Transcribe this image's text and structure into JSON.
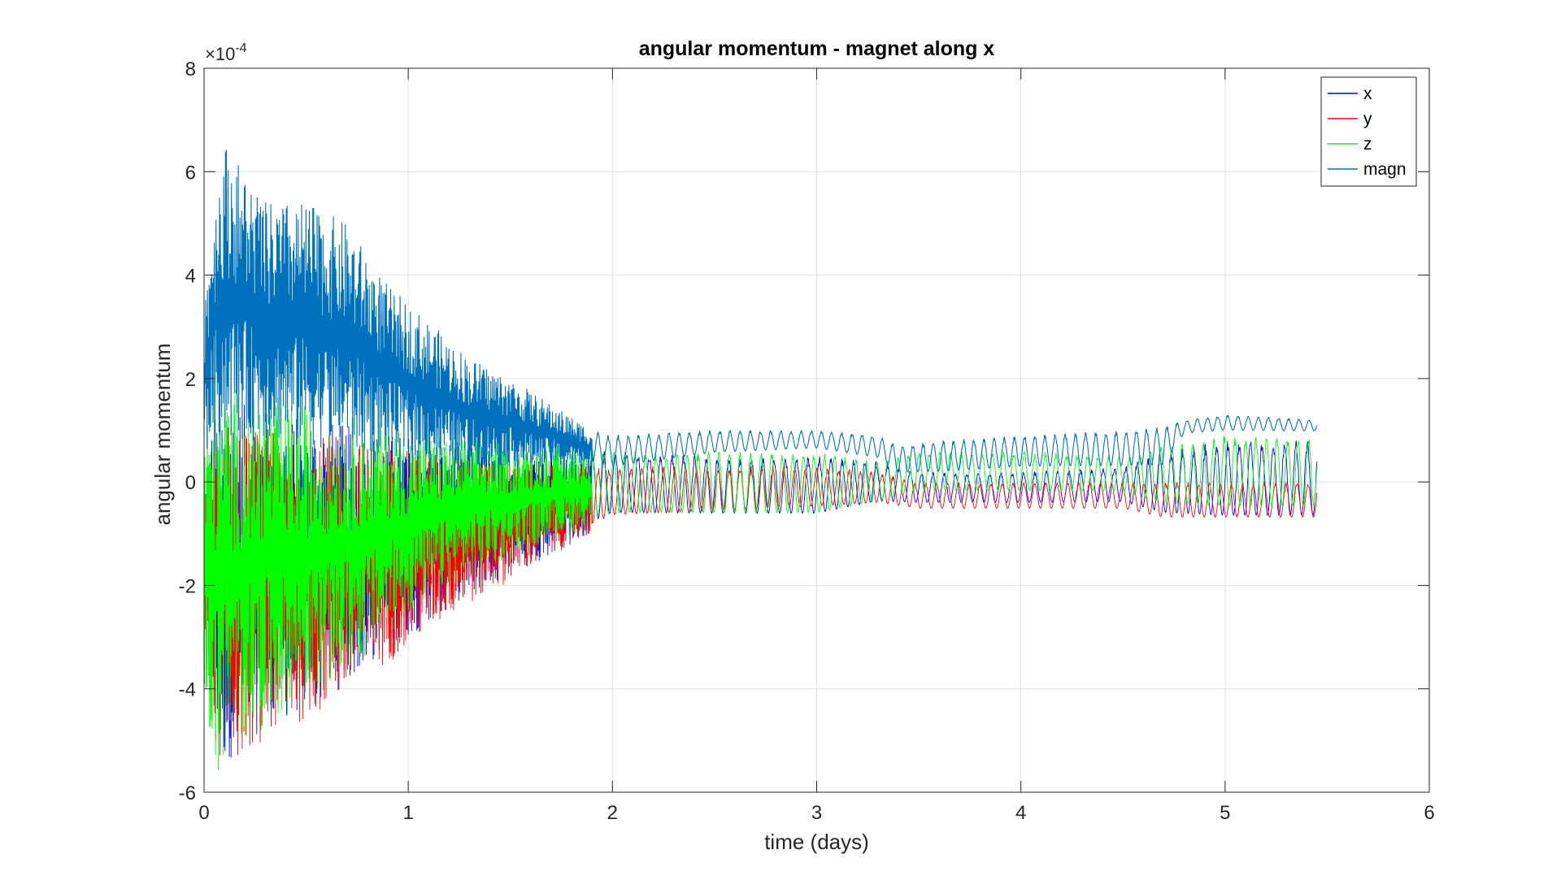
{
  "chart_data": {
    "type": "line",
    "title": "angular momentum - magnet along x",
    "xlabel": "time (days)",
    "ylabel": "angular momentum",
    "y_exponent_label": "×10",
    "y_exponent_power": "-4",
    "xlim": [
      0,
      6
    ],
    "ylim": [
      -6,
      8
    ],
    "x_ticks": [
      0,
      1,
      2,
      3,
      4,
      5,
      6
    ],
    "x_tick_labels": [
      "0",
      "1",
      "2",
      "3",
      "4",
      "5",
      "6"
    ],
    "y_ticks": [
      -6,
      -4,
      -2,
      0,
      2,
      4,
      6,
      8
    ],
    "y_tick_labels": [
      "-6",
      "-4",
      "-2",
      "0",
      "2",
      "4",
      "6",
      "8"
    ],
    "grid": true,
    "legend_position": "top-right",
    "data_x_max": 5.45,
    "series": [
      {
        "name": "x",
        "color": "#0000ff",
        "envelope": {
          "x": [
            0,
            0.05,
            0.1,
            0.2,
            0.4,
            0.6,
            0.8,
            1.0,
            1.2,
            1.5,
            1.8,
            2.0,
            2.5,
            3.0,
            3.3,
            3.5,
            4.0,
            4.5,
            4.7,
            5.0,
            5.45
          ],
          "high": [
            0.3,
            1.4,
            1.6,
            1.5,
            1.3,
            1.2,
            1.0,
            0.9,
            0.8,
            0.7,
            0.6,
            0.6,
            0.5,
            0.5,
            0.4,
            0.2,
            0.2,
            0.3,
            0.6,
            0.8,
            0.8
          ],
          "low": [
            -4.5,
            -4.6,
            -5.5,
            -5.0,
            -4.6,
            -4.2,
            -3.6,
            -3.0,
            -2.4,
            -1.8,
            -1.2,
            -0.8,
            -0.8,
            -0.8,
            -0.5,
            -0.5,
            -0.5,
            -0.5,
            -0.8,
            -0.9,
            -0.9
          ]
        }
      },
      {
        "name": "y",
        "color": "#ff0000",
        "envelope": {
          "x": [
            0,
            0.05,
            0.1,
            0.2,
            0.4,
            0.6,
            0.8,
            1.0,
            1.2,
            1.5,
            1.8,
            2.0,
            2.5,
            3.0,
            3.3,
            3.5,
            4.0,
            4.5,
            4.7,
            5.0,
            5.45
          ],
          "high": [
            0.2,
            1.0,
            1.2,
            1.1,
            1.0,
            0.9,
            0.8,
            0.6,
            0.5,
            0.4,
            0.3,
            0.3,
            0.3,
            0.3,
            0.2,
            0.0,
            0.0,
            0.0,
            0.0,
            0.0,
            0.0
          ],
          "low": [
            -3.5,
            -5.0,
            -5.6,
            -5.2,
            -4.8,
            -4.4,
            -3.8,
            -3.2,
            -2.6,
            -1.9,
            -1.2,
            -0.8,
            -0.7,
            -0.6,
            -0.5,
            -0.6,
            -0.6,
            -0.6,
            -0.8,
            -0.8,
            -0.8
          ]
        }
      },
      {
        "name": "z",
        "color": "#00ff00",
        "envelope": {
          "x": [
            0,
            0.05,
            0.1,
            0.2,
            0.4,
            0.6,
            0.8,
            1.0,
            1.2,
            1.5,
            1.8,
            2.0,
            2.5,
            3.0,
            3.3,
            3.5,
            4.0,
            4.5,
            4.7,
            5.0,
            5.45
          ],
          "high": [
            1.0,
            2.1,
            1.9,
            1.8,
            1.6,
            1.4,
            1.2,
            1.0,
            0.9,
            0.8,
            0.7,
            0.6,
            0.6,
            0.6,
            0.4,
            0.6,
            0.6,
            0.5,
            0.7,
            0.9,
            0.9
          ],
          "low": [
            -4.0,
            -5.8,
            -5.5,
            -5.0,
            -4.5,
            -4.0,
            -3.4,
            -2.6,
            -2.0,
            -1.5,
            -1.0,
            -0.8,
            -0.8,
            -0.8,
            -0.5,
            -0.3,
            -0.3,
            -0.3,
            -0.6,
            -0.7,
            -0.7
          ]
        }
      },
      {
        "name": "magn",
        "color": "#0072bd",
        "envelope": {
          "x": [
            0,
            0.05,
            0.1,
            0.15,
            0.2,
            0.3,
            0.5,
            0.7,
            0.9,
            1.1,
            1.3,
            1.5,
            1.7,
            1.9,
            2.0,
            2.5,
            3.0,
            3.3,
            3.4,
            3.6,
            4.0,
            4.5,
            4.7,
            4.8,
            5.0,
            5.45
          ],
          "high": [
            3.5,
            5.5,
            6.6,
            6.3,
            6.0,
            5.4,
            5.4,
            5.0,
            3.8,
            3.1,
            2.4,
            2.0,
            1.5,
            1.0,
            0.9,
            1.0,
            1.0,
            0.9,
            0.7,
            0.8,
            0.9,
            1.0,
            1.1,
            1.2,
            1.3,
            1.2
          ],
          "low": [
            0.5,
            0.8,
            0.8,
            0.8,
            0.8,
            0.8,
            0.7,
            0.6,
            0.5,
            0.4,
            0.3,
            0.3,
            0.3,
            0.3,
            0.2,
            0.5,
            0.6,
            0.4,
            0.1,
            0.1,
            0.2,
            0.2,
            0.2,
            0.9,
            0.95,
            0.95
          ]
        }
      }
    ]
  }
}
